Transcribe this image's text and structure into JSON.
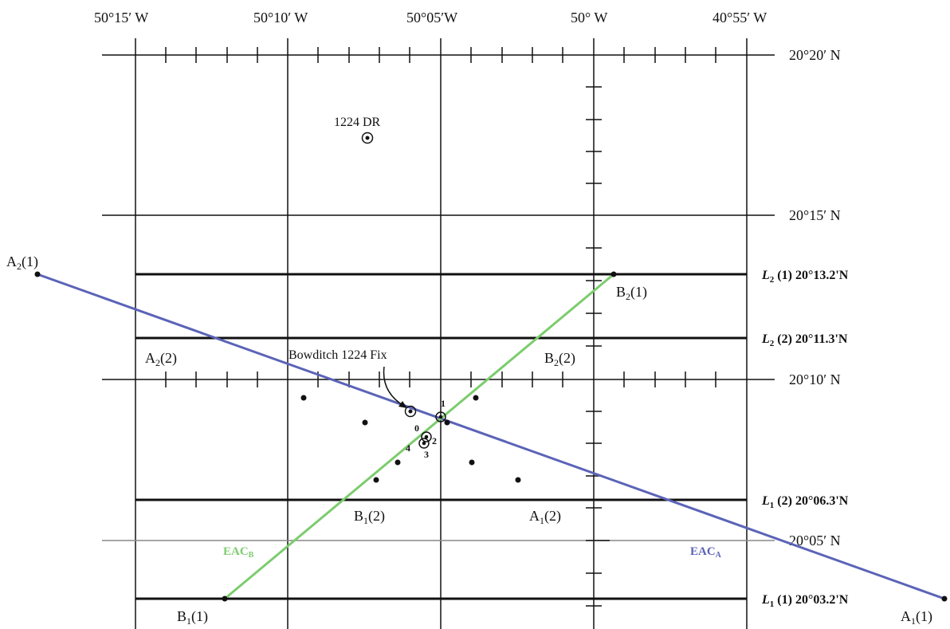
{
  "chart_data": {
    "type": "diagram",
    "longitudes": [
      "50°15′ W",
      "50°10′ W",
      "50°05′W",
      "50° W",
      "40°55′ W"
    ],
    "latitudes": [
      "20°20′ N",
      "20°15′ N",
      "20°10′ N",
      "20°05′ N"
    ],
    "lop_lines": [
      {
        "id": "L2-1",
        "sub": "2",
        "suffix": "(1) 20°13.2'N"
      },
      {
        "id": "L2-2",
        "sub": "2",
        "suffix": "(2) 20°11.3'N"
      },
      {
        "id": "L1-2",
        "sub": "1",
        "suffix": "(2) 20°06.3'N"
      },
      {
        "id": "L1-1",
        "sub": "1",
        "suffix": "(1) 20°03.2'N"
      }
    ],
    "eac_a": {
      "label": "EAC",
      "sub": "A",
      "color": "#5b63b7"
    },
    "eac_b": {
      "label": "EAC",
      "sub": "B",
      "color": "#7ccc6e"
    },
    "point_labels": [
      {
        "id": "A2-1",
        "letter": "A",
        "sub": "2",
        "suffix": "(1)"
      },
      {
        "id": "A2-2",
        "letter": "A",
        "sub": "2",
        "suffix": "(2)"
      },
      {
        "id": "B2-1",
        "letter": "B",
        "sub": "2",
        "suffix": "(1)"
      },
      {
        "id": "B2-2",
        "letter": "B",
        "sub": "2",
        "suffix": "(2)"
      },
      {
        "id": "B1-2",
        "letter": "B",
        "sub": "1",
        "suffix": "(2)"
      },
      {
        "id": "A1-2",
        "letter": "A",
        "sub": "1",
        "suffix": "(2)"
      },
      {
        "id": "B1-1",
        "letter": "B",
        "sub": "1",
        "suffix": "(1)"
      },
      {
        "id": "A1-1",
        "letter": "A",
        "sub": "1",
        "suffix": "(1)"
      }
    ],
    "dr_label": "1224 DR",
    "fix_label": "Bowditch 1224 Fix",
    "fix_numbers": [
      "0",
      "1",
      "2",
      "3",
      "4"
    ]
  }
}
